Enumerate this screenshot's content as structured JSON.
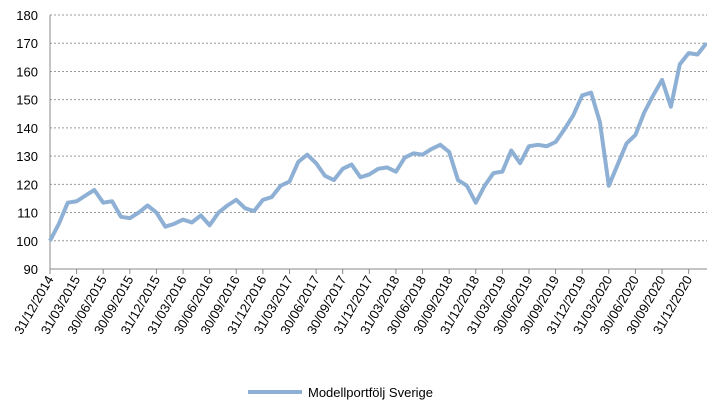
{
  "chart_data": {
    "type": "line",
    "categories": [
      "31/12/2014",
      null,
      null,
      "31/03/2015",
      null,
      null,
      "30/06/2015",
      null,
      null,
      "30/09/2015",
      null,
      null,
      "31/12/2015",
      null,
      null,
      "31/03/2016",
      null,
      null,
      "30/06/2016",
      null,
      null,
      "30/09/2016",
      null,
      null,
      "31/12/2016",
      null,
      null,
      "31/03/2017",
      null,
      null,
      "30/06/2017",
      null,
      null,
      "30/09/2017",
      null,
      null,
      "31/12/2017",
      null,
      null,
      "31/03/2018",
      null,
      null,
      "30/06/2018",
      null,
      null,
      "30/09/2018",
      null,
      null,
      "31/12/2018",
      null,
      null,
      "31/03/2019",
      null,
      null,
      "30/06/2019",
      null,
      null,
      "30/09/2019",
      null,
      null,
      "31/12/2019",
      null,
      null,
      "31/03/2020",
      null,
      null,
      "30/06/2020",
      null,
      null,
      "30/09/2020",
      null,
      null,
      "31/12/2020",
      null,
      null
    ],
    "series": [
      {
        "name": "Modellportfölj Sverige",
        "color": "#8eb0d4",
        "values": [
          100,
          106,
          113.5,
          114,
          116,
          118,
          113.5,
          114,
          108.5,
          108,
          110,
          112.5,
          110,
          105,
          106,
          107.5,
          106.5,
          109,
          105.5,
          110,
          112.5,
          114.5,
          111.5,
          110.5,
          114.5,
          115.5,
          119.5,
          121,
          128,
          130.5,
          127.5,
          123,
          121.5,
          125.5,
          127,
          122.5,
          123.5,
          125.5,
          126,
          124.5,
          129.5,
          131,
          130.5,
          132.5,
          134,
          131.5,
          121.5,
          119.5,
          113.5,
          119.5,
          124,
          124.5,
          132,
          127.5,
          133.5,
          134,
          133.5,
          135,
          139.5,
          144.5,
          151.5,
          152.5,
          142,
          119.5,
          127,
          134.5,
          137.5,
          145.5,
          151.5,
          157,
          147.5,
          162.5,
          166.5,
          166,
          170
        ]
      }
    ],
    "ylim": [
      90,
      180
    ],
    "yticks": [
      90,
      100,
      110,
      120,
      130,
      140,
      150,
      160,
      170,
      180
    ],
    "grid": true,
    "legend": "bottom"
  }
}
